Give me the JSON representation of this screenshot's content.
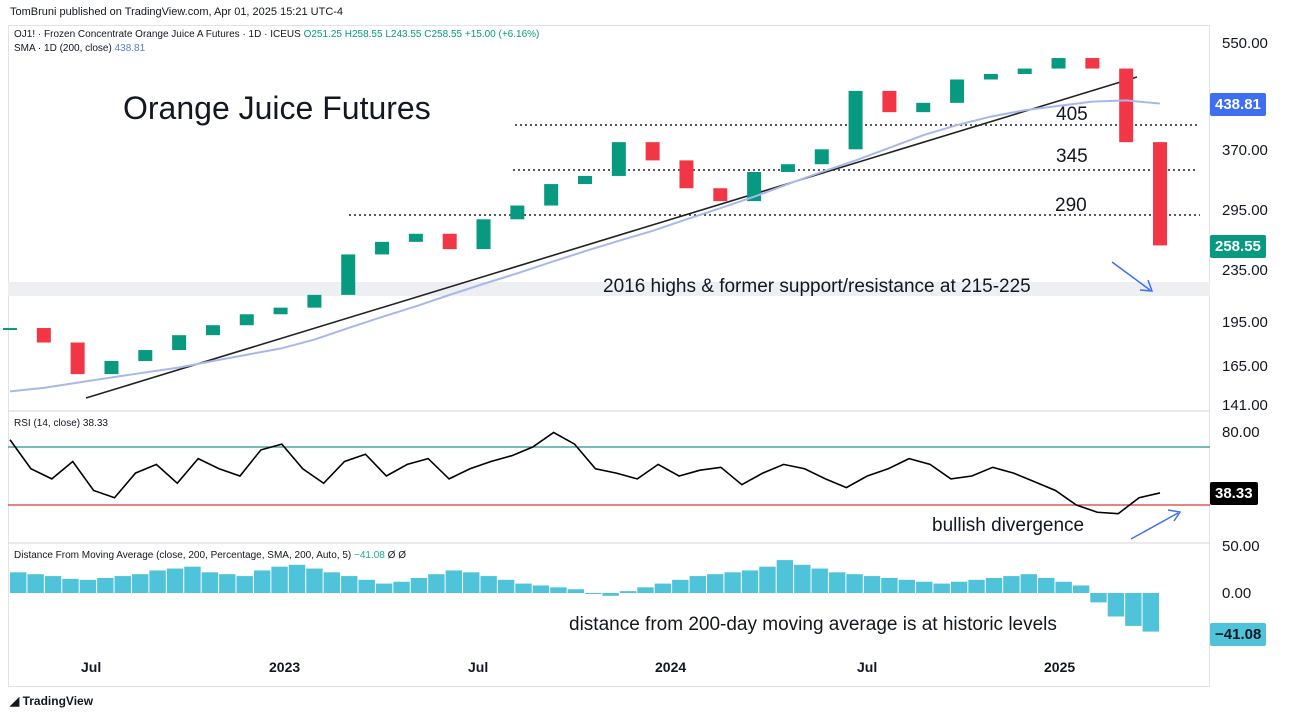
{
  "header": {
    "text": "TomBruni published on TradingView.com, Apr 01, 2025 15:21 UTC-4"
  },
  "legend": {
    "symbol": "OJ1! · Frozen Concentrate Orange Juice A Futures · 1D · ICEUS",
    "o": "O251.25",
    "h": "H258.55",
    "l": "L243.55",
    "c": "C258.55",
    "chg": "+15.00 (+6.16%)",
    "sma_label": "SMA · 1D (200, close)",
    "sma_value": "438.81",
    "rsi_label": "RSI (14, close)",
    "rsi_value": "38.33",
    "dma_label": "Distance From Moving Average (close, 200, Percentage, SMA, 200, Auto, 5)",
    "dma_value": "−41.08",
    "dma_extra": "Ø  Ø"
  },
  "annotations": {
    "title": "Orange Juice Futures",
    "level_405": "405",
    "level_345": "345",
    "level_290": "290",
    "support": "2016 highs & former support/resistance at 215-225",
    "bullish": "bullish divergence",
    "distance": "distance from 200-day moving average is at historic levels"
  },
  "axes": {
    "price_ticks": [
      "550.00",
      "370.00",
      "295.00",
      "235.00",
      "195.00",
      "165.00",
      "141.00"
    ],
    "rsi_ticks": [
      "80.00"
    ],
    "dma_ticks": [
      "50.00",
      "0.00"
    ],
    "x_ticks": [
      "Jul",
      "2023",
      "Jul",
      "2024",
      "Jul",
      "2025"
    ]
  },
  "badges": {
    "sma": "438.81",
    "price": "258.55",
    "rsi": "38.33",
    "dma": "−41.08"
  },
  "footer": {
    "logo": "TradingView"
  },
  "colors": {
    "up": "#089981",
    "down": "#f23645",
    "sma": "#9fb0e8",
    "rsi": "#000000",
    "rsi_upper": "#2a8f8f",
    "rsi_lower": "#d23c3c",
    "hist": "#4fc3d9",
    "trend": "#222222",
    "accent": "#3d6ff0"
  },
  "chart_data": [
    {
      "type": "line",
      "title": "Orange Juice Futures",
      "ylabel": "",
      "y_scale": "log",
      "ylim": [
        141,
        560
      ],
      "x": [
        "2022-05",
        "2022-06",
        "2022-07",
        "2022-08",
        "2022-09",
        "2022-10",
        "2022-11",
        "2022-12",
        "2023-01",
        "2023-02",
        "2023-03",
        "2023-04",
        "2023-05",
        "2023-06",
        "2023-07",
        "2023-08",
        "2023-09",
        "2023-10",
        "2023-11",
        "2023-12",
        "2024-01",
        "2024-02",
        "2024-03",
        "2024-04",
        "2024-05",
        "2024-06",
        "2024-07",
        "2024-08",
        "2024-09",
        "2024-10",
        "2024-11",
        "2024-12",
        "2025-01",
        "2025-02",
        "2025-03"
      ],
      "series": [
        {
          "values": [
            190,
            180,
            160,
            168,
            175,
            185,
            192,
            200,
            205,
            215,
            250,
            262,
            270,
            255,
            285,
            300,
            325,
            335,
            380,
            355,
            320,
            305,
            340,
            350,
            370,
            460,
            425,
            440,
            480,
            490,
            500,
            520,
            500,
            380,
            258.55
          ]
        },
        {
          "values": [
            150,
            152,
            155,
            158,
            161,
            164,
            168,
            172,
            176,
            182,
            190,
            198,
            206,
            215,
            224,
            233,
            243,
            253,
            263,
            273,
            285,
            297,
            310,
            325,
            340,
            355,
            372,
            390,
            405,
            418,
            428,
            435,
            442,
            444,
            438.81
          ]
        }
      ],
      "horizontal_levels": [
        405,
        345,
        290,
        220
      ],
      "last_value": 258.55,
      "sma_last": 438.81
    },
    {
      "type": "line",
      "title": "RSI (14, close)",
      "ylim": [
        20,
        90
      ],
      "levels": [
        70,
        30
      ],
      "values": [
        75,
        55,
        48,
        60,
        40,
        35,
        52,
        58,
        45,
        62,
        55,
        50,
        68,
        72,
        55,
        45,
        60,
        65,
        50,
        58,
        62,
        48,
        55,
        60,
        64,
        70,
        80,
        72,
        55,
        52,
        48,
        58,
        50,
        54,
        56,
        44,
        52,
        58,
        55,
        48,
        42,
        50,
        55,
        62,
        58,
        48,
        50,
        56,
        52,
        46,
        40,
        30,
        25,
        24,
        35,
        38.33
      ],
      "last_value": 38.33
    },
    {
      "type": "bar",
      "title": "Distance From Moving Average",
      "ylim": [
        -45,
        55
      ],
      "values": [
        22,
        20,
        18,
        15,
        14,
        16,
        18,
        20,
        24,
        26,
        28,
        22,
        20,
        18,
        24,
        28,
        30,
        26,
        22,
        18,
        14,
        10,
        12,
        16,
        20,
        24,
        22,
        18,
        14,
        10,
        8,
        6,
        4,
        0,
        -3,
        2,
        6,
        10,
        14,
        18,
        20,
        22,
        24,
        28,
        35,
        30,
        26,
        22,
        20,
        18,
        16,
        14,
        12,
        10,
        12,
        14,
        16,
        18,
        20,
        16,
        12,
        8,
        -10,
        -25,
        -35,
        -41.08
      ],
      "last_value": -41.08
    }
  ]
}
